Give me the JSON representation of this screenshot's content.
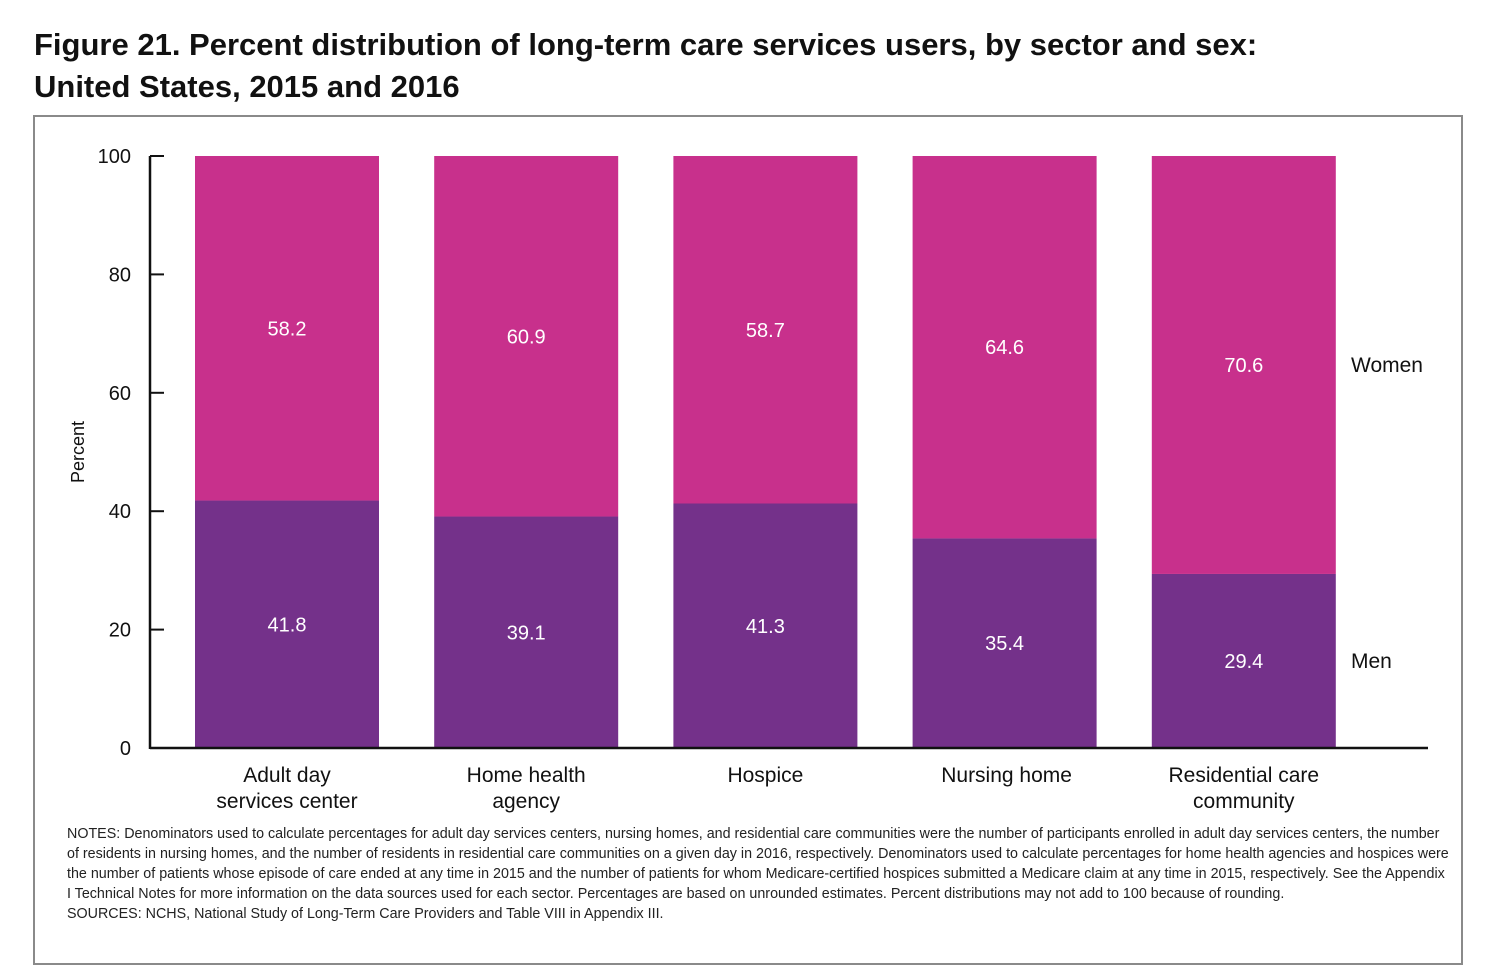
{
  "chart_data": {
    "type": "bar",
    "stacked": true,
    "title": "Figure 21. Percent distribution of long-term care services users, by sector and sex: United States, 2015 and 2016",
    "xlabel": "",
    "ylabel": "Percent",
    "ylim": [
      0,
      100
    ],
    "yticks": [
      0,
      20,
      40,
      60,
      80,
      100
    ],
    "grid": false,
    "categories": [
      [
        "Adult day",
        "services center"
      ],
      [
        "Home health",
        "agency"
      ],
      [
        "Hospice"
      ],
      [
        "Nursing home"
      ],
      [
        "Residential care",
        "community"
      ]
    ],
    "series": [
      {
        "name": "Men",
        "color": "#74318a",
        "values": [
          41.8,
          39.1,
          41.3,
          35.4,
          29.4
        ]
      },
      {
        "name": "Women",
        "color": "#c8308c",
        "values": [
          58.2,
          60.9,
          58.7,
          64.6,
          70.6
        ]
      }
    ],
    "legend": {
      "placement": "right",
      "labels": [
        "Women",
        "Men"
      ]
    }
  },
  "title_lines": [
    "Figure 21. Percent distribution of long-term care services users, by sector and sex:",
    "United States, 2015 and 2016"
  ],
  "notes": "NOTES: Denominators used to calculate percentages for adult day services centers, nursing homes, and residential care communities were the number of participants enrolled in adult day services centers, the number of residents in nursing homes, and the number of residents in residential care communities on a given day in 2016, respectively. Denominators used to calculate percentages for home health agencies and hospices were the number of patients whose episode of care ended at any time in 2015 and the number of patients for whom Medicare-certified hospices submitted a Medicare claim at any time in 2015, respectively. See the Appendix I Technical Notes for more information on the data sources used for each sector. Percentages are based on unrounded estimates. Percent distributions may not add to 100 because of rounding.",
  "sources": "SOURCES: NCHS, National Study of Long-Term Care Providers and Table VIII in Appendix III."
}
